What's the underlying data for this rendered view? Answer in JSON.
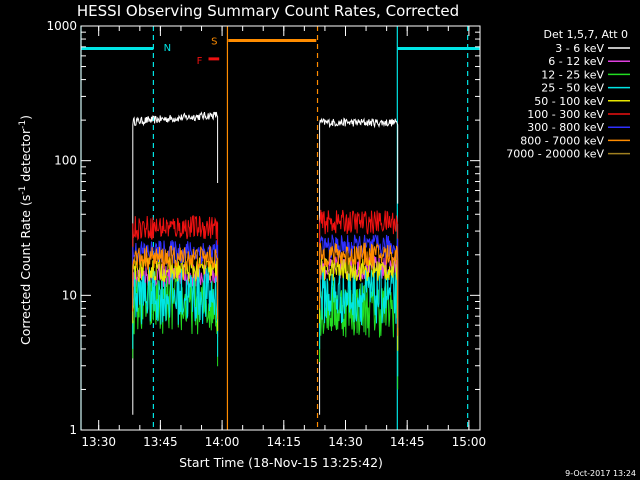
{
  "chart_data": {
    "type": "line",
    "title": "HESSI Observing Summary Count Rates, Corrected",
    "xlabel": "Start Time (18-Nov-15 13:25:42)",
    "ylabel_main": "Corrected Count Rate (s",
    "ylabel_sup1": "-1",
    "ylabel_mid": " detector",
    "ylabel_sup2": "-1",
    "ylabel_end": ")",
    "y_scale": "log",
    "ylim": [
      1,
      1000
    ],
    "xlim_minutes": [
      0,
      97
    ],
    "x_ticks": [
      {
        "label": "13:30",
        "m": 4.3
      },
      {
        "label": "13:45",
        "m": 19.3
      },
      {
        "label": "14:00",
        "m": 34.3
      },
      {
        "label": "14:15",
        "m": 49.3
      },
      {
        "label": "14:30",
        "m": 64.3
      },
      {
        "label": "14:45",
        "m": 79.3
      },
      {
        "label": "15:00",
        "m": 94.3
      }
    ],
    "y_ticks": [
      {
        "label": "1",
        "v": 1
      },
      {
        "label": "10",
        "v": 10
      },
      {
        "label": "100",
        "v": 100
      },
      {
        "label": "1000",
        "v": 1000
      }
    ],
    "legend_title": "Det 1,5,7, Att 0",
    "legend_position": "outside-right",
    "series": [
      {
        "name": "3 - 6 keV",
        "color": "#ffffff",
        "seg1_level": 195,
        "seg2_level": 192
      },
      {
        "name": "6 - 12 keV",
        "color": "#e040e0",
        "seg1_level": 14,
        "seg2_level": 16
      },
      {
        "name": "12 - 25 keV",
        "color": "#22dd22",
        "seg1_level": 8.5,
        "seg2_level": 8
      },
      {
        "name": "25 - 50 keV",
        "color": "#00e5e5",
        "seg1_level": 10,
        "seg2_level": 10
      },
      {
        "name": "50 - 100 keV",
        "color": "#e8e800",
        "seg1_level": 15.5,
        "seg2_level": 15.5
      },
      {
        "name": "100 - 300 keV",
        "color": "#ee1111",
        "seg1_level": 32,
        "seg2_level": 35
      },
      {
        "name": "300 - 800 keV",
        "color": "#3030ff",
        "seg1_level": 21,
        "seg2_level": 23
      },
      {
        "name": "800 - 7000 keV",
        "color": "#ff8c00",
        "seg1_level": 19,
        "seg2_level": 20
      },
      {
        "name": "7000 - 20000 keV",
        "color": "#a08020",
        "seg1_level": null,
        "seg2_level": null
      }
    ],
    "data_segments": [
      {
        "start_m": 12.6,
        "end_m": 33.2
      },
      {
        "start_m": 58.0,
        "end_m": 77.0
      }
    ],
    "annotations": [
      {
        "text": "N",
        "color": "#00e5e5",
        "m": 21.0,
        "v": 700
      },
      {
        "text": "S",
        "color": "#ff8c00",
        "m": 32.4,
        "v": 780
      },
      {
        "text": "F",
        "color": "#ee1111",
        "m": 28.8,
        "v": 560
      }
    ],
    "flag_bars": [
      {
        "color": "#00e5e5",
        "start_m": 0.0,
        "end_m": 17.6,
        "v": 680
      },
      {
        "color": "#ff8c00",
        "start_m": 35.8,
        "end_m": 57.2,
        "v": 780
      },
      {
        "color": "#ee1111",
        "start_m": 31.0,
        "end_m": 33.6,
        "v": 570
      },
      {
        "color": "#00e5e5",
        "start_m": 76.9,
        "end_m": 97.0,
        "v": 680
      }
    ],
    "vertical_lines": [
      {
        "color": "#00e5e5",
        "m": 0.0,
        "style": "solid"
      },
      {
        "color": "#00e5e5",
        "m": 17.6,
        "style": "dashed"
      },
      {
        "color": "#ff8c00",
        "m": 35.6,
        "style": "solid"
      },
      {
        "color": "#ff8c00",
        "m": 57.5,
        "style": "dashed"
      },
      {
        "color": "#00e5e5",
        "m": 76.9,
        "style": "solid"
      },
      {
        "color": "#00e5e5",
        "m": 94.0,
        "style": "dashed"
      }
    ]
  },
  "footer": {
    "date_stamp": "9-Oct-2017 13:24"
  }
}
